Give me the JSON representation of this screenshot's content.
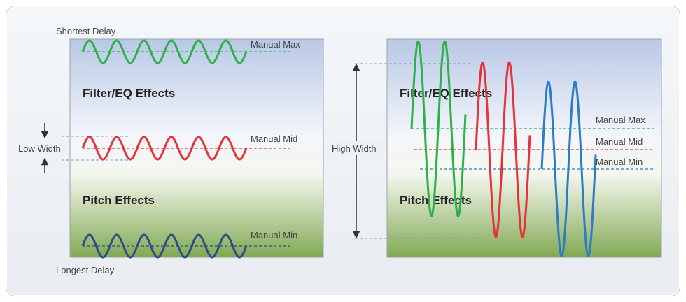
{
  "left_panel": {
    "top_label": "Shortest Delay",
    "bottom_label": "Longest Delay",
    "side_label": "Low Width",
    "upper_region": "Filter/EQ Effects",
    "lower_region": "Pitch Effects",
    "marker_max": "Manual Max",
    "marker_mid": "Manual Mid",
    "marker_min": "Manual Min"
  },
  "right_panel": {
    "side_label": "High Width",
    "upper_region": "Filter/EQ Effects",
    "lower_region": "Pitch Effects",
    "marker_max": "Manual Max",
    "marker_mid": "Manual Mid",
    "marker_min": "Manual Min"
  },
  "colors": {
    "max": "#2db24a",
    "mid": "#e5323b",
    "min": "#2a4f86",
    "right_min": "#2d7dc4"
  }
}
